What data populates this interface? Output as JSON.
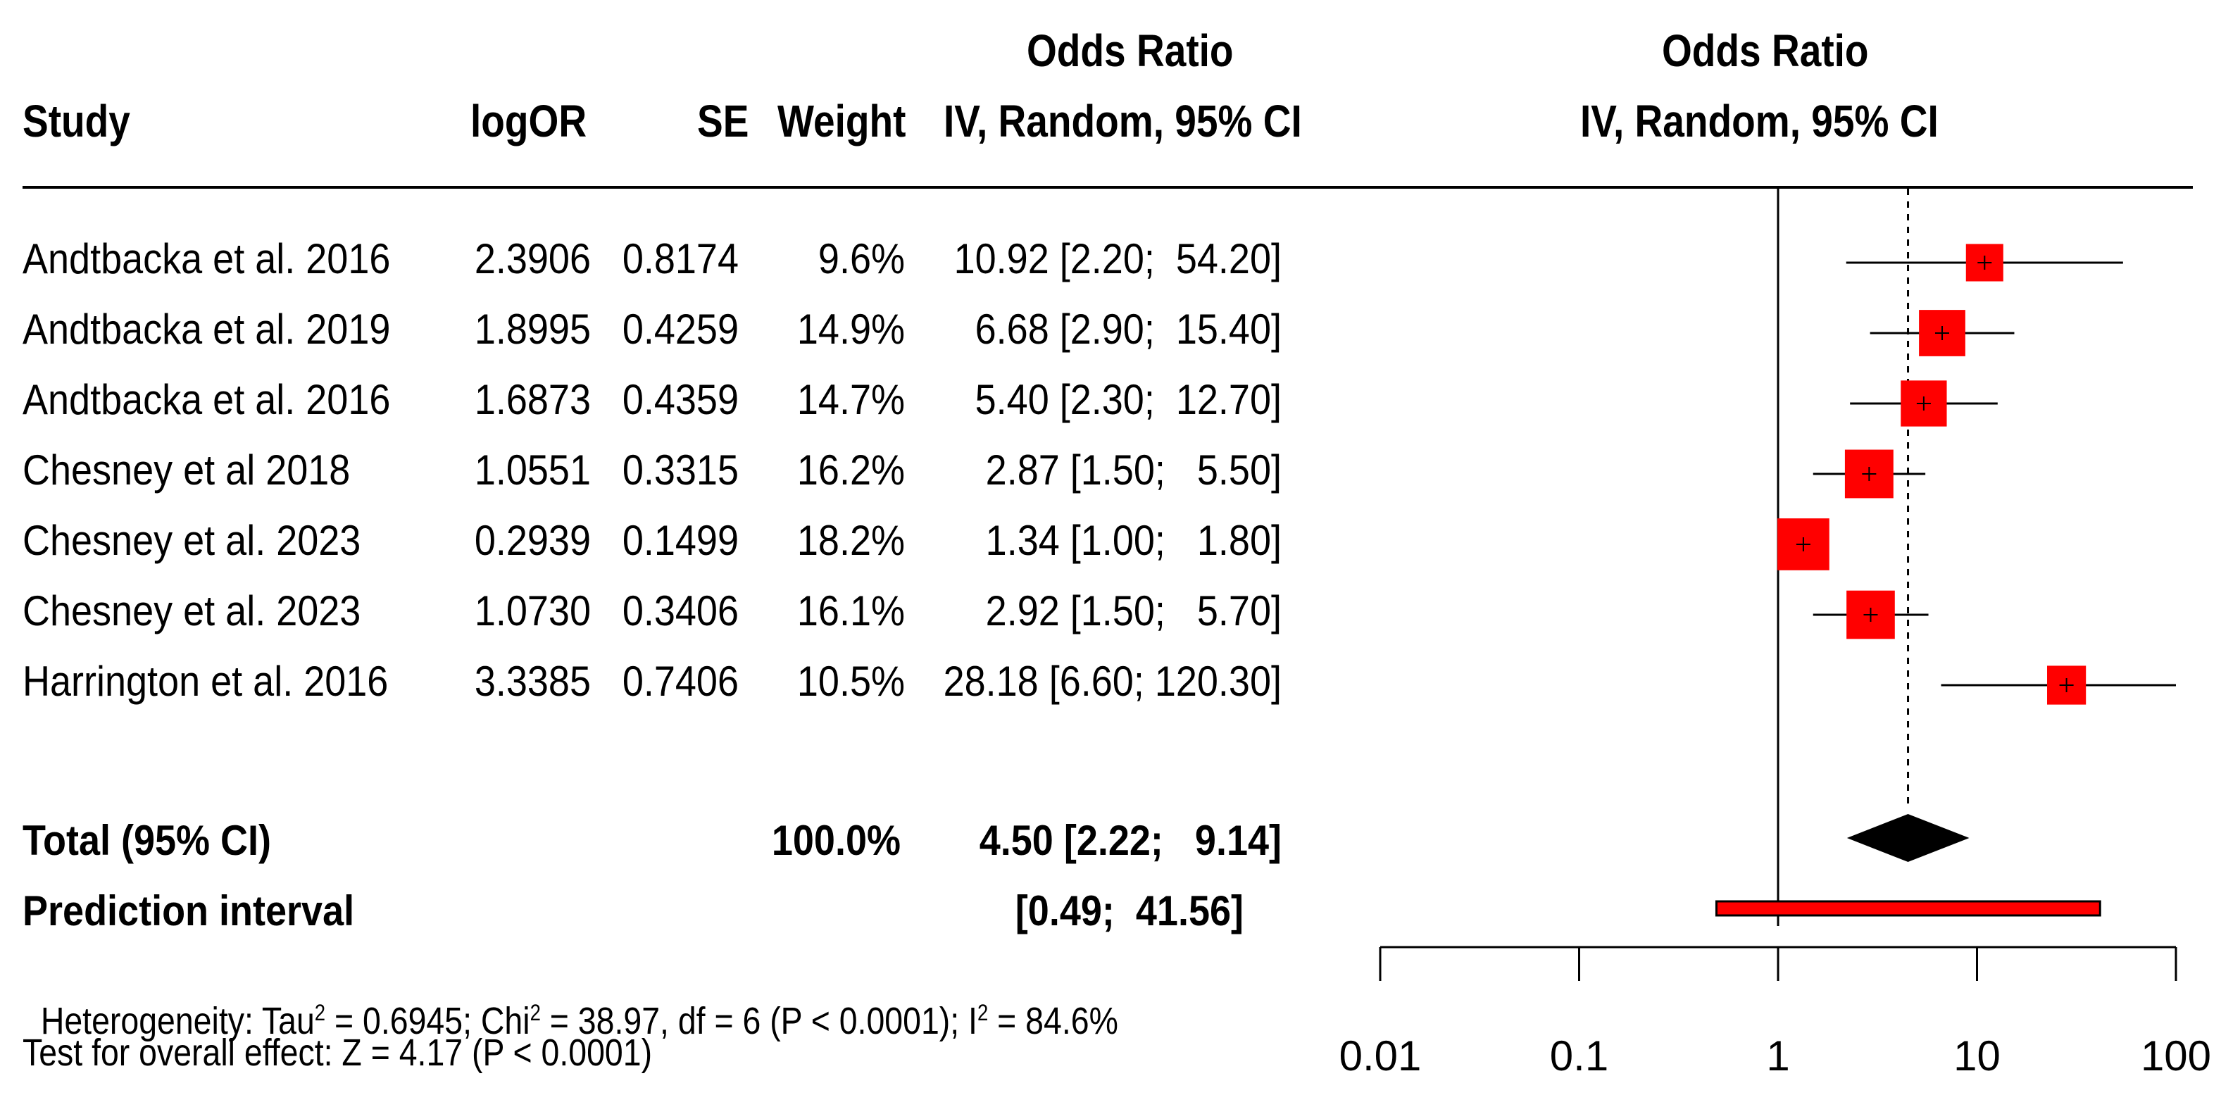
{
  "chart_data": {
    "type": "forest",
    "headers": {
      "study": "Study",
      "logor": "logOR",
      "se": "SE",
      "weight": "Weight",
      "or_col_line1": "Odds Ratio",
      "or_col_line2": "IV, Random, 95% CI",
      "plot_line1": "Odds Ratio",
      "plot_line2": "IV, Random, 95% CI"
    },
    "studies": [
      {
        "study": "Andtbacka et al. 2016",
        "logOR": "2.3906",
        "SE": "0.8174",
        "weight": "9.6%",
        "ci_text": "10.92 [2.20;  54.20]",
        "or": 10.92,
        "lower": 2.2,
        "upper": 54.2,
        "w": 9.6
      },
      {
        "study": "Andtbacka et al. 2019",
        "logOR": "1.8995",
        "SE": "0.4259",
        "weight": "14.9%",
        "ci_text": "6.68 [2.90;  15.40]",
        "or": 6.68,
        "lower": 2.9,
        "upper": 15.4,
        "w": 14.9
      },
      {
        "study": "Andtbacka et al. 2016",
        "logOR": "1.6873",
        "SE": "0.4359",
        "weight": "14.7%",
        "ci_text": "5.40 [2.30;  12.70]",
        "or": 5.4,
        "lower": 2.3,
        "upper": 12.7,
        "w": 14.7
      },
      {
        "study": "Chesney et al 2018",
        "logOR": "1.0551",
        "SE": "0.3315",
        "weight": "16.2%",
        "ci_text": "2.87 [1.50;   5.50]",
        "or": 2.87,
        "lower": 1.5,
        "upper": 5.5,
        "w": 16.2
      },
      {
        "study": "Chesney et al. 2023",
        "logOR": "0.2939",
        "SE": "0.1499",
        "weight": "18.2%",
        "ci_text": "1.34 [1.00;   1.80]",
        "or": 1.34,
        "lower": 1.0,
        "upper": 1.8,
        "w": 18.2
      },
      {
        "study": "Chesney et al. 2023",
        "logOR": "1.0730",
        "SE": "0.3406",
        "weight": "16.1%",
        "ci_text": "2.92 [1.50;   5.70]",
        "or": 2.92,
        "lower": 1.5,
        "upper": 5.7,
        "w": 16.1
      },
      {
        "study": "Harrington et al. 2016",
        "logOR": "3.3385",
        "SE": "0.7406",
        "weight": "10.5%",
        "ci_text": "28.18 [6.60; 120.30]",
        "or": 28.18,
        "lower": 6.6,
        "upper": 120.3,
        "w": 10.5
      }
    ],
    "total": {
      "label": "Total (95% CI)",
      "weight": "100.0%",
      "ci_text": "4.50 [2.22;   9.14]",
      "or": 4.5,
      "lower": 2.22,
      "upper": 9.14
    },
    "prediction": {
      "label": "Prediction interval",
      "ci_text": "[0.49;  41.56]",
      "lower": 0.49,
      "upper": 41.56
    },
    "heterogeneity": {
      "prefix": "Heterogeneity: Tau",
      "tau2_value": " = 0.6945; Chi",
      "chi2_value": " = 38.97, df = 6 (P < 0.0001); I",
      "i2_value": " = 84.6%",
      "sup": "2"
    },
    "overall_test": "Test for overall effect: Z = 4.17 (P < 0.0001)",
    "x_axis": {
      "scale": "log",
      "xlim": [
        0.01,
        100
      ],
      "ticks": [
        0.01,
        0.1,
        1,
        10,
        100
      ],
      "tick_labels": [
        "0.01",
        "0.1",
        "1",
        "10",
        "100"
      ],
      "reference_line": 1,
      "summary_line": 4.5
    },
    "colors": {
      "box": "#ff0000",
      "diamond": "#000000",
      "prediction_bar": "#ff0000",
      "line": "#000000"
    }
  }
}
